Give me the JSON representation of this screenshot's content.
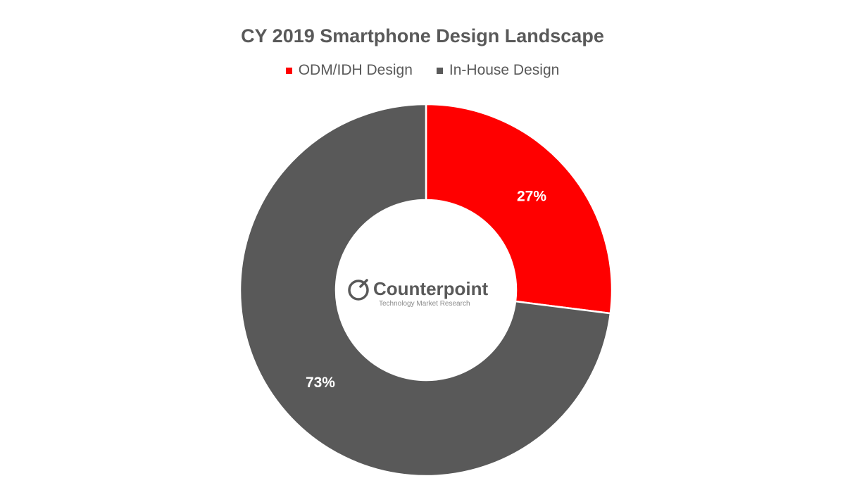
{
  "chart_data": {
    "type": "pie",
    "title": "CY 2019 Smartphone Design Landscape",
    "donut": true,
    "legend_position": "top",
    "series": [
      {
        "name": "ODM/IDH Design",
        "value": 27,
        "label": "27%",
        "color": "#ff0000"
      },
      {
        "name": "In-House Design",
        "value": 73,
        "label": "73%",
        "color": "#595959"
      }
    ],
    "watermark": {
      "name": "Counterpoint",
      "tagline": "Technology Market Research"
    }
  }
}
